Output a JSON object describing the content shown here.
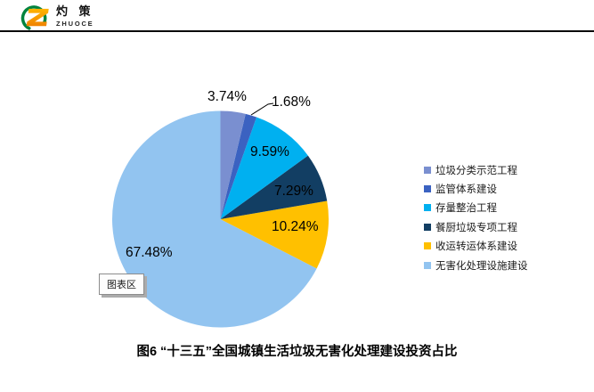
{
  "header": {
    "brand_cn": "灼 策",
    "brand_en": "ZHUOCE",
    "logo_colors": {
      "z_orange_top": "#FFB400",
      "z_orange_bottom": "#F08300",
      "ring_green": "#00833E"
    }
  },
  "chart_data": {
    "type": "pie",
    "title": "图6 “十三五”全国城镇生活垃圾无害化处理建设投资占比",
    "legend_position": "right",
    "start_angle_deg": 0,
    "direction": "clockwise",
    "slices": [
      {
        "label": "垃圾分类示范工程",
        "value": 3.74,
        "display": "3.74%",
        "color": "#7A8FD0"
      },
      {
        "label": "监管体系建设",
        "value": 1.68,
        "display": "1.68%",
        "color": "#3B62C1"
      },
      {
        "label": "存量整治工程",
        "value": 9.59,
        "display": "9.59%",
        "color": "#00B0F0"
      },
      {
        "label": "餐厨垃圾专项工程",
        "value": 7.29,
        "display": "7.29%",
        "color": "#123E63"
      },
      {
        "label": "收运转运体系建设",
        "value": 10.24,
        "display": "10.24%",
        "color": "#FFC000"
      },
      {
        "label": "无害化处理设施建设",
        "value": 67.48,
        "display": "67.48%",
        "color": "#92C4F0"
      }
    ]
  },
  "tooltip": {
    "text": "图表区"
  }
}
